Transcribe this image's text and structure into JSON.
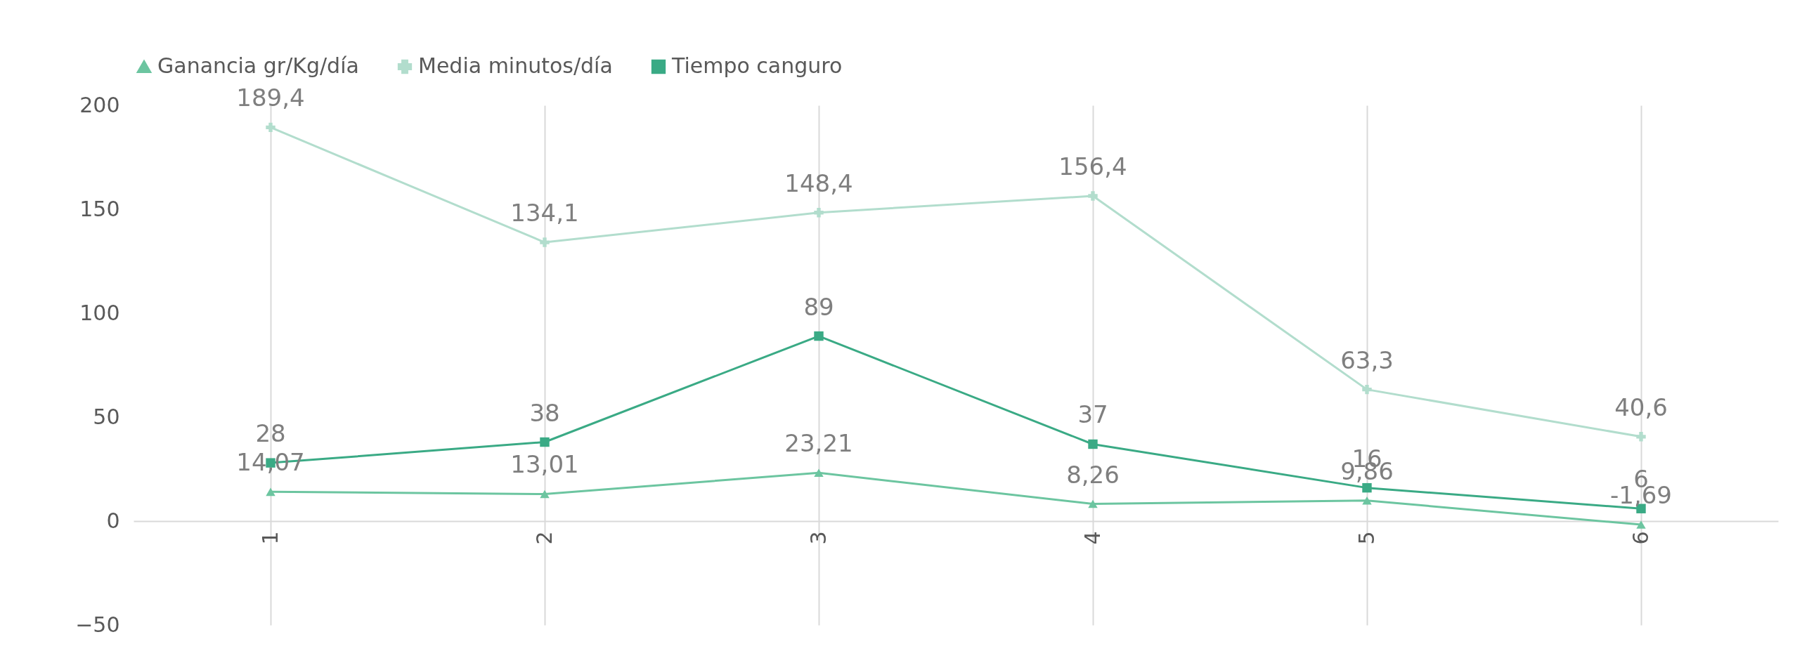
{
  "chart_data": {
    "type": "line",
    "categories": [
      "1",
      "2",
      "3",
      "4",
      "5",
      "6"
    ],
    "series": [
      {
        "name": "Ganancia gr/Kg/día",
        "color": "#6cc5a0",
        "marker": "triangle",
        "values": [
          14.07,
          13.01,
          23.21,
          8.26,
          9.86,
          -1.69
        ],
        "value_labels": [
          "14,07",
          "13,01",
          "23,21",
          "8,26",
          "9,86",
          "-1,69"
        ]
      },
      {
        "name": "Media minutos/día",
        "color": "#b2ddcd",
        "marker": "cross",
        "values": [
          189.4,
          134.1,
          148.4,
          156.4,
          63.3,
          40.6
        ],
        "value_labels": [
          "189,4",
          "134,1",
          "148,4",
          "156,4",
          "63,3",
          "40,6"
        ]
      },
      {
        "name": "Tiempo  canguro",
        "color": "#3aaa85",
        "marker": "square",
        "values": [
          28,
          38,
          89,
          37,
          16,
          6
        ],
        "value_labels": [
          "28",
          "38",
          "89",
          "37",
          "16",
          "6"
        ]
      }
    ],
    "ylim": [
      -50,
      200
    ],
    "yticks": [
      -50,
      0,
      50,
      100,
      150,
      200
    ],
    "grid": "x",
    "legend": "top"
  }
}
